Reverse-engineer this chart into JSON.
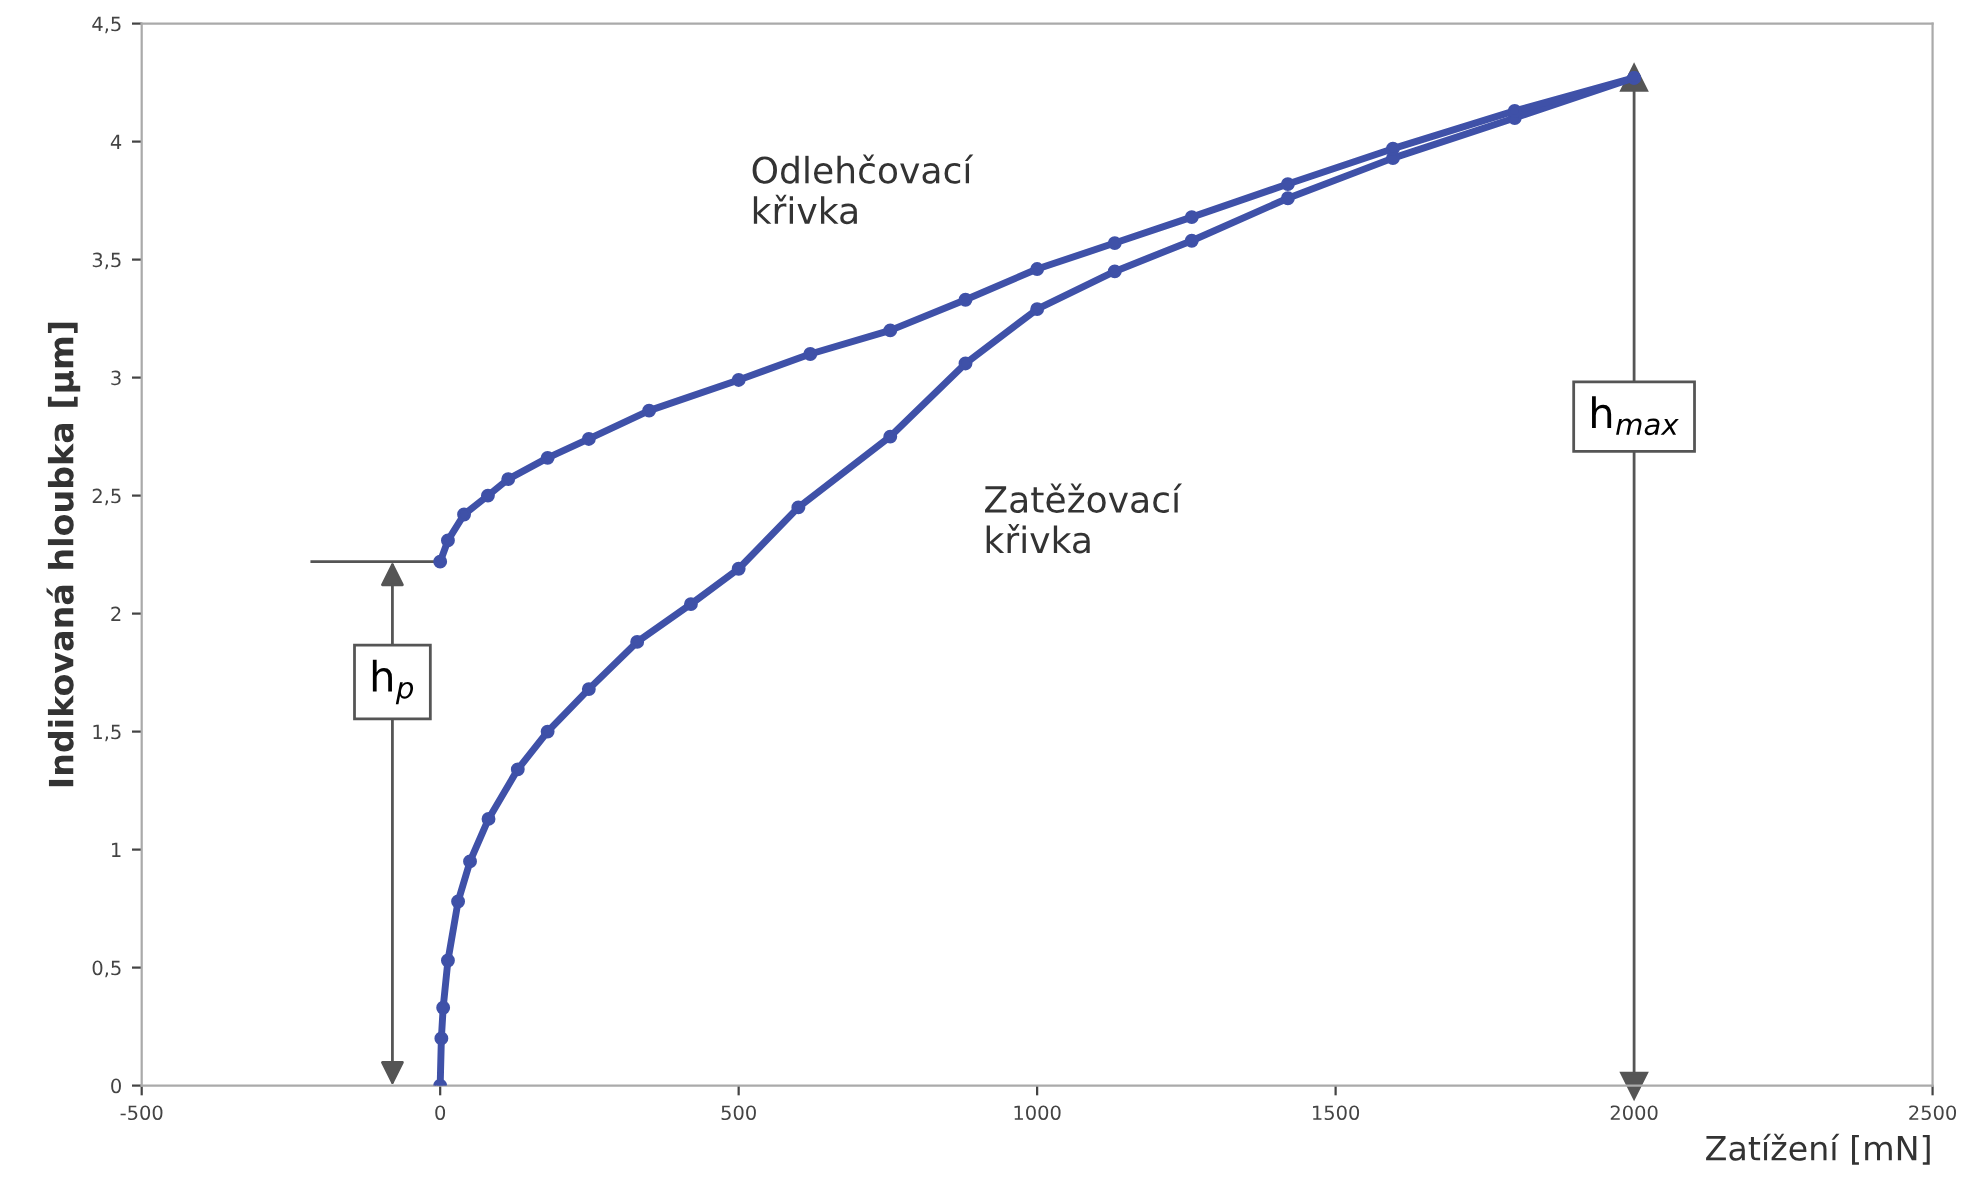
{
  "chart_data": {
    "type": "line",
    "xlabel": "Zatížení [mN]",
    "ylabel": "Indikovaná hloubka [µm]",
    "xlim": [
      -500,
      2500
    ],
    "xticks": [
      -500,
      0,
      500,
      1000,
      1500,
      2000,
      2500
    ],
    "ylim": [
      0,
      4.5
    ],
    "yticks": [
      0,
      {
        "value": 0.5,
        "label": "0,5"
      },
      1,
      {
        "value": 1.5,
        "label": "1,5"
      },
      2,
      {
        "value": 2.5,
        "label": "2,5"
      },
      3,
      {
        "value": 3.5,
        "label": "3,5"
      },
      4,
      {
        "value": 4.5,
        "label": "4,5"
      }
    ],
    "grid": false,
    "legend": false,
    "marker": "circle",
    "line_style": "solid",
    "series": [
      {
        "color": "#3f51a8",
        "x": [
          0,
          2,
          5,
          13,
          30,
          50,
          81,
          130,
          180,
          249,
          330,
          420,
          500,
          600,
          754,
          880,
          1000,
          1130,
          1259,
          1420,
          1596,
          1800,
          2000
        ],
        "values": [
          0,
          0.2,
          0.33,
          0.53,
          0.78,
          0.95,
          1.13,
          1.34,
          1.5,
          1.68,
          1.88,
          2.04,
          2.19,
          2.45,
          2.75,
          3.06,
          3.29,
          3.45,
          3.58,
          3.76,
          3.93,
          4.1,
          4.27
        ]
      },
      {
        "color": "#3f51a8",
        "x": [
          0,
          13,
          40,
          80,
          114,
          180,
          249,
          350,
          500,
          620,
          754,
          880,
          1000,
          1130,
          1259,
          1420,
          1596,
          1800,
          2000
        ],
        "values": [
          2.22,
          2.31,
          2.42,
          2.5,
          2.57,
          2.66,
          2.74,
          2.86,
          2.99,
          3.1,
          3.2,
          3.33,
          3.46,
          3.57,
          3.68,
          3.82,
          3.97,
          4.13,
          4.27
        ]
      }
    ],
    "ref_lines": [
      {
        "axis": "x",
        "value": 2000,
        "color": "#555555"
      }
    ],
    "annotations": [
      "Odlehčovací\nkřivka",
      "Zatěžovací\nkřivka",
      "h$_{p}$",
      "h$_{max}$"
    ]
  }
}
